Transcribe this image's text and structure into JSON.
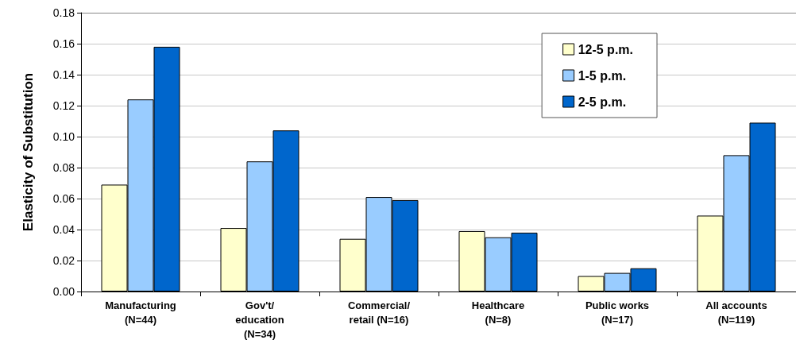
{
  "chart_data": {
    "type": "bar",
    "ylabel": "Elasticity of Substitution",
    "categories": [
      "Manufacturing\n(N=44)",
      "Gov't/\neducation\n(N=34)",
      "Commercial/\nretail (N=16)",
      "Healthcare\n(N=8)",
      "Public works\n(N=17)",
      "All accounts\n(N=119)"
    ],
    "series": [
      {
        "name": "12-5 p.m.",
        "color": "#ffffcc",
        "values": [
          0.069,
          0.041,
          0.034,
          0.039,
          0.01,
          0.049
        ]
      },
      {
        "name": "1-5 p.m.",
        "color": "#99ccff",
        "values": [
          0.124,
          0.084,
          0.061,
          0.035,
          0.012,
          0.088
        ]
      },
      {
        "name": "2-5 p.m.",
        "color": "#0066cc",
        "values": [
          0.158,
          0.104,
          0.059,
          0.038,
          0.015,
          0.109
        ]
      }
    ],
    "ylim": [
      0,
      0.18
    ],
    "yticks": [
      {
        "value": 0,
        "label": "0.00"
      },
      0.02,
      0.04,
      0.06,
      0.08,
      {
        "value": 0.1,
        "label": "0.10"
      },
      0.12,
      0.14,
      0.16,
      0.18
    ],
    "grid": "y",
    "legend": "top right"
  }
}
